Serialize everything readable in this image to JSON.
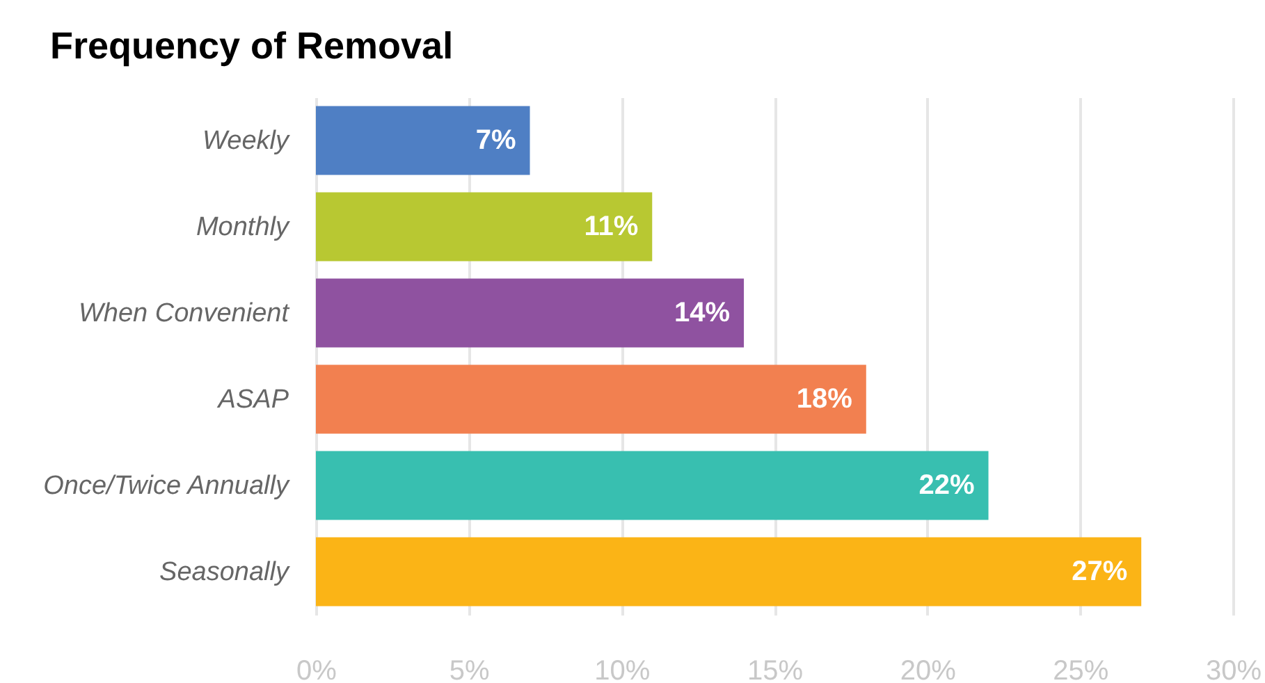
{
  "chart_data": {
    "type": "bar",
    "title": "Frequency of Removal",
    "orientation": "horizontal",
    "categories": [
      "Weekly",
      "Monthly",
      "When Convenient",
      "ASAP",
      "Once/Twice Annually",
      "Seasonally"
    ],
    "values": [
      7,
      11,
      14,
      18,
      22,
      27
    ],
    "colors": [
      "#4f7fc4",
      "#b8c832",
      "#8f52a0",
      "#f28050",
      "#38bfb0",
      "#fbb416"
    ],
    "value_labels": [
      "7%",
      "11%",
      "14%",
      "18%",
      "22%",
      "27%"
    ],
    "xlim": [
      0,
      30
    ],
    "xticks": [
      {
        "value": 0,
        "label": "0%"
      },
      {
        "value": 5,
        "label": "5%"
      },
      {
        "value": 10,
        "label": "10%"
      },
      {
        "value": 15,
        "label": "15%"
      },
      {
        "value": 20,
        "label": "20%"
      },
      {
        "value": 25,
        "label": "25%"
      },
      {
        "value": 30,
        "label": "30%"
      }
    ],
    "grid": true
  }
}
